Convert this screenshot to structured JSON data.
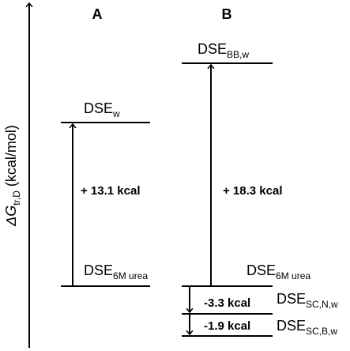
{
  "axis": {
    "symbol": "ΔG",
    "subscript": "tr,D",
    "unit": " (kcal/mol)"
  },
  "columns": [
    {
      "title": "A",
      "levels": [
        {
          "label": "DSE",
          "subscript": "w"
        },
        {
          "label": "DSE",
          "subscript": "6M urea"
        }
      ],
      "arrows": [
        {
          "label": "+ 13.1 kcal"
        }
      ]
    },
    {
      "title": "B",
      "levels": [
        {
          "label": "DSE",
          "subscript": "BB,w"
        },
        {
          "label": "DSE",
          "subscript": "6M urea"
        },
        {
          "label": "DSE",
          "subscript": "SC,N,w"
        },
        {
          "label": "DSE",
          "subscript": "SC,B,w"
        }
      ],
      "arrows": [
        {
          "label": "+ 18.3 kcal"
        },
        {
          "label": "-3.3 kcal"
        },
        {
          "label": "-1.9 kcal"
        }
      ]
    }
  ]
}
